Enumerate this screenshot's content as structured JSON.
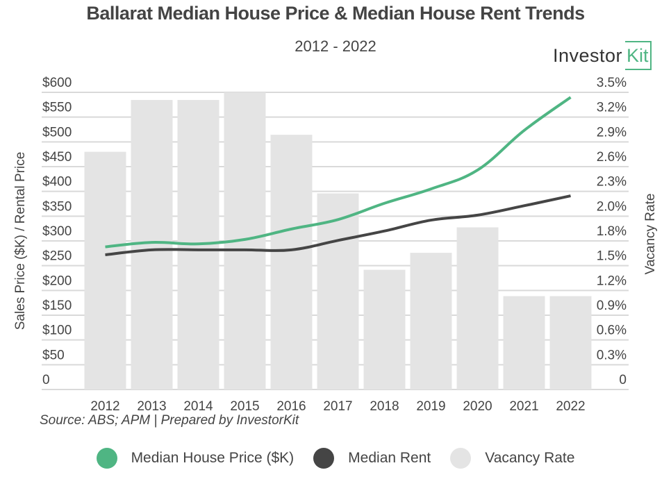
{
  "header": {
    "title": "Ballarat Median House Price & Median House Rent Trends",
    "subtitle": "2012 - 2022",
    "logo_word": "Investor",
    "logo_kit": "Kit"
  },
  "source_note": "Source: ABS; APM | Prepared by InvestorKit",
  "colors": {
    "price": "#4fb583",
    "rent": "#454545",
    "vacancy": "#e4e4e4",
    "grid": "#d9d9d9"
  },
  "chart_data": {
    "type": "bar+line",
    "title": "Ballarat Median House Price & Median House Rent Trends",
    "subtitle": "2012 - 2022",
    "categories": [
      "2012",
      "2013",
      "2014",
      "2015",
      "2016",
      "2017",
      "2018",
      "2019",
      "2020",
      "2021",
      "2022"
    ],
    "ylabel": "Sales Price ($K) / Rental Price",
    "y2label": "Vacancy Rate",
    "ylim": [
      0,
      600
    ],
    "y2lim": [
      0,
      3.5
    ],
    "yticks": [
      "0",
      "$50",
      "$100",
      "$150",
      "$200",
      "$250",
      "$300",
      "$350",
      "$400",
      "$450",
      "$500",
      "$550",
      "$600"
    ],
    "y2ticks": [
      "0",
      "0.3%",
      "0.6%",
      "0.9%",
      "1.2%",
      "1.5%",
      "1.8%",
      "2.0%",
      "2.3%",
      "2.6%",
      "2.9%",
      "3.2%",
      "3.5%"
    ],
    "grid": true,
    "legend_position": "bottom",
    "series": [
      {
        "name": "Median House Price ($K)",
        "type": "line",
        "axis": "left",
        "values": [
          288,
          297,
          294,
          303,
          324,
          343,
          376,
          405,
          443,
          523,
          590
        ]
      },
      {
        "name": "Median Rent",
        "type": "line",
        "axis": "left",
        "values": [
          272,
          282,
          282,
          282,
          282,
          301,
          320,
          342,
          352,
          371,
          391
        ]
      },
      {
        "name": "Vacancy Rate",
        "type": "bar",
        "axis": "right",
        "unit": "%",
        "values": [
          2.8,
          3.41,
          3.41,
          3.5,
          3.0,
          2.31,
          1.41,
          1.61,
          1.91,
          1.1,
          1.1
        ]
      }
    ]
  },
  "legend": [
    {
      "label": "Median House Price ($K)",
      "color": "#4fb583"
    },
    {
      "label": "Median Rent",
      "color": "#454545"
    },
    {
      "label": "Vacancy Rate",
      "color": "#e4e4e4"
    }
  ]
}
